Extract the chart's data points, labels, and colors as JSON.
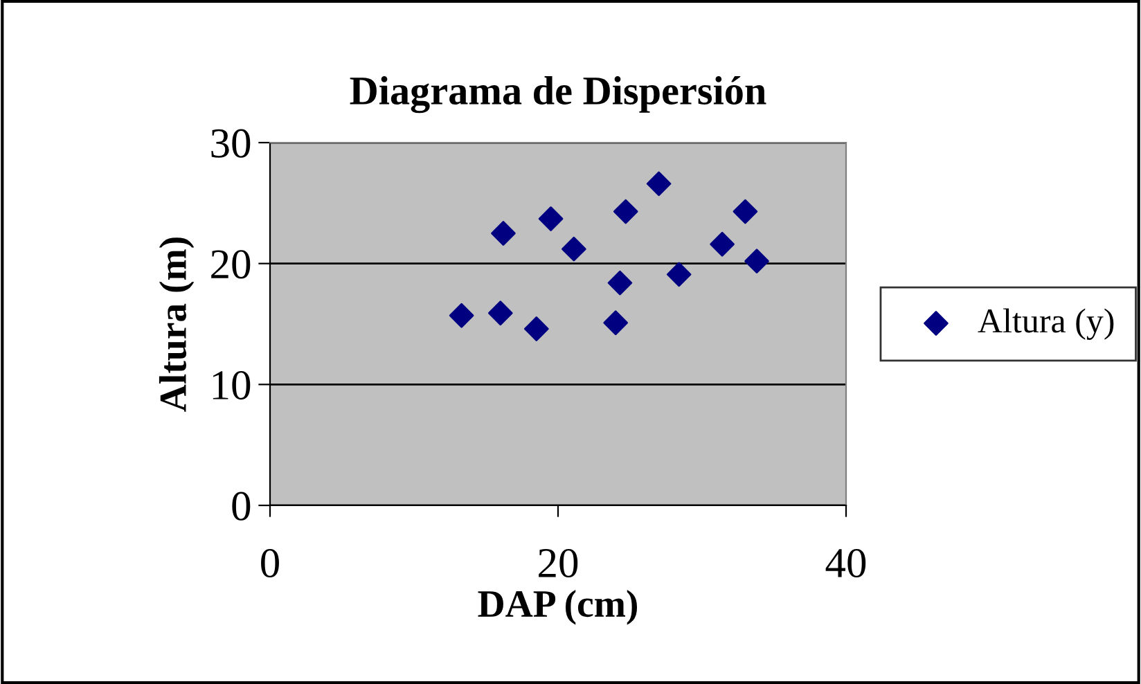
{
  "chart_data": {
    "type": "scatter",
    "title": "Diagrama de Dispersión",
    "xlabel": "DAP (cm)",
    "ylabel": "Altura (m)",
    "x": [
      13.3,
      16.2,
      16.0,
      18.5,
      19.5,
      21.1,
      24.0,
      24.3,
      24.7,
      27.0,
      28.4,
      31.4,
      33.0,
      33.8
    ],
    "series": [
      {
        "name": "Altura (y)",
        "color": "#000080",
        "values": [
          15.7,
          22.5,
          15.9,
          14.6,
          23.7,
          21.2,
          15.1,
          18.4,
          24.3,
          26.6,
          19.1,
          21.6,
          24.3,
          20.2
        ]
      }
    ],
    "xlim": [
      0,
      40
    ],
    "xticks": [
      0,
      20,
      40
    ],
    "ylim": [
      0,
      30
    ],
    "yticks": [
      0,
      10,
      20,
      30
    ],
    "grid": "y",
    "legend": "right",
    "marker": "diamond"
  }
}
